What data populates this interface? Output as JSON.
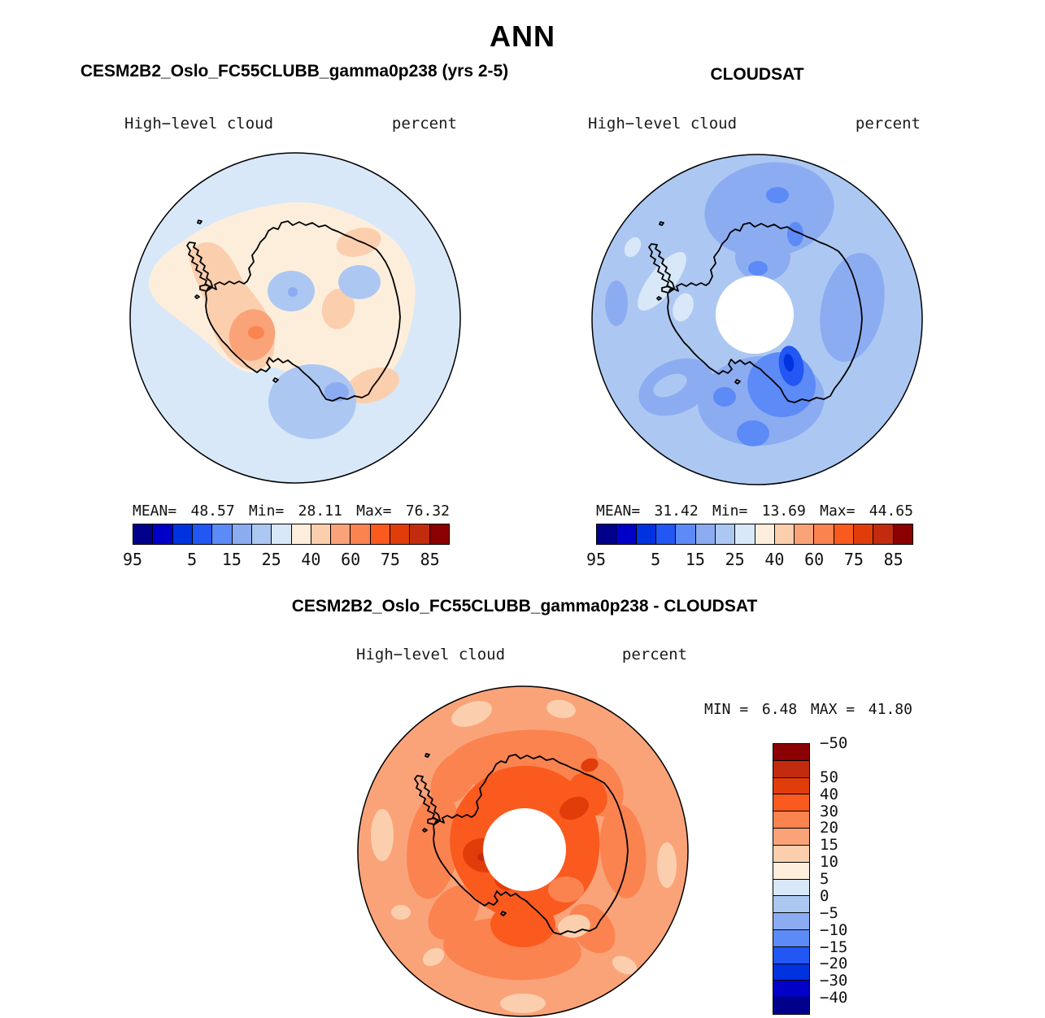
{
  "title": "ANN",
  "palette": [
    "#00008B",
    "#0000C8",
    "#0032E0",
    "#2257F4",
    "#5C8BF7",
    "#8CACF2",
    "#ACC8F2",
    "#D8E8F8",
    "#FDEEDC",
    "#FBCFAE",
    "#FAA379",
    "#FB8350",
    "#FA5A1E",
    "#E13D0A",
    "#C32B0E",
    "#8B0000"
  ],
  "diff_colorbar_colors": [
    "#8B0000",
    "#C32B0E",
    "#E13D0A",
    "#FA5A1E",
    "#FB8350",
    "#FAA379",
    "#FBCFAE",
    "#FDEEDC",
    "#D8E8F8",
    "#ACC8F2",
    "#8CACF2",
    "#5C8BF7",
    "#2257F4",
    "#0032E0",
    "#0000C8",
    "#00008B"
  ],
  "panels": {
    "model": {
      "title": "CESM2B2_Oslo_FC55CLUBB_gamma0p238 (yrs 2-5)",
      "field_label": "High−level cloud",
      "units_label": "percent",
      "stats": {
        "mean_label": "MEAN=",
        "mean": "48.57",
        "min_label": "Min=",
        "min": "28.11",
        "max_label": "Max=",
        "max": "76.32"
      },
      "colorbar_ticks": [
        "5",
        "15",
        "25",
        "40",
        "60",
        "75",
        "85",
        "95"
      ]
    },
    "obs": {
      "title": "CLOUDSAT",
      "field_label": "High−level cloud",
      "units_label": "percent",
      "stats": {
        "mean_label": "MEAN=",
        "mean": "31.42",
        "min_label": "Min=",
        "min": "13.69",
        "max_label": "Max=",
        "max": "44.65"
      },
      "colorbar_ticks": [
        "5",
        "15",
        "25",
        "40",
        "60",
        "75",
        "85",
        "95"
      ]
    },
    "diff": {
      "title": "CESM2B2_Oslo_FC55CLUBB_gamma0p238 - CLOUDSAT",
      "field_label": "High−level cloud",
      "units_label": "percent",
      "stats": {
        "min_label": "MIN =",
        "min": "6.48",
        "max_label": "MAX =",
        "max": "41.80"
      },
      "colorbar_ticks": [
        "50",
        "40",
        "30",
        "20",
        "15",
        "10",
        "5",
        "0",
        "−5",
        "−10",
        "−15",
        "−20",
        "−30",
        "−40",
        "−50"
      ]
    }
  },
  "chart_data": [
    {
      "type": "heatmap",
      "subtype": "filled-contour-polar-map",
      "title": "CESM2B2_Oslo_FC55CLUBB_gamma0p238 (yrs 2-5)",
      "variable": "High-level cloud",
      "units": "percent",
      "region": "Antarctica / Southern Ocean, south polar stereographic",
      "season": "ANN",
      "mean": 48.57,
      "min": 28.11,
      "max": 76.32,
      "contour_boundaries": [
        0,
        5,
        10,
        15,
        20,
        25,
        30,
        40,
        50,
        60,
        70,
        75,
        80,
        85,
        90,
        95,
        100
      ],
      "labeled_ticks": [
        5,
        15,
        25,
        40,
        60,
        75,
        85,
        95
      ],
      "colorbar_orientation": "horizontal",
      "notes": "Background ocean ring 40-50%; pale 50-60% over most of continent; 60-75% band over West Antarctica/Peninsula with 75-80% core; 25-40% patches over Ross Sea and interior East Antarctica"
    },
    {
      "type": "heatmap",
      "subtype": "filled-contour-polar-map",
      "title": "CLOUDSAT",
      "variable": "High-level cloud",
      "units": "percent",
      "region": "Antarctica / Southern Ocean, south polar stereographic",
      "season": "ANN",
      "mean": 31.42,
      "min": 13.69,
      "max": 44.65,
      "contour_boundaries": [
        0,
        5,
        10,
        15,
        20,
        25,
        30,
        40,
        50,
        60,
        70,
        75,
        80,
        85,
        90,
        95,
        100
      ],
      "labeled_ticks": [
        5,
        15,
        25,
        40,
        60,
        75,
        85,
        95
      ],
      "colorbar_orientation": "horizontal",
      "notes": "Mostly 30-40%; 25-30% and 20-25% patches near pole and top; 10-20% minimum south-east of pole; 40-50% light patches near Antarctic Peninsula; white disk = no data poleward of CloudSat orbit"
    },
    {
      "type": "heatmap",
      "subtype": "filled-contour-polar-map-difference",
      "title": "CESM2B2_Oslo_FC55CLUBB_gamma0p238 - CLOUDSAT",
      "variable": "High-level cloud",
      "units": "percent",
      "region": "Antarctica / Southern Ocean, south polar stereographic",
      "season": "ANN",
      "min": 6.48,
      "max": 41.8,
      "contour_boundaries": [
        -50,
        -40,
        -30,
        -20,
        -15,
        -10,
        -5,
        0,
        5,
        10,
        15,
        20,
        30,
        40,
        50
      ],
      "labeled_ticks": [
        50,
        40,
        30,
        20,
        15,
        10,
        5,
        0,
        -5,
        -10,
        -15,
        -20,
        -30,
        -40,
        -50
      ],
      "colorbar_orientation": "vertical",
      "notes": "Positive everywhere: 10-15% outer ring with 5-10% patches at rim, 15-30% broad ring, 30-40% dark patches surrounding data-void disk at pole"
    }
  ]
}
